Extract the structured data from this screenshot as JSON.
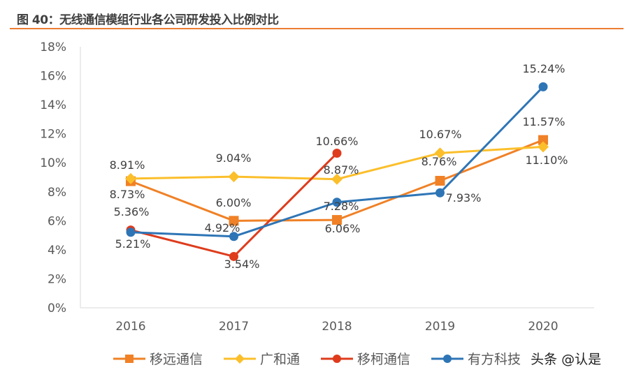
{
  "figure_title": "图 40：无线通信模组行业各公司研发投入比例对比",
  "watermark": "头条 @认是",
  "chart_data": {
    "type": "line",
    "title": "",
    "xlabel": "",
    "ylabel": "",
    "categories": [
      "2016",
      "2017",
      "2018",
      "2019",
      "2020"
    ],
    "ylim": [
      0,
      18
    ],
    "y_ticks": [
      "0%",
      "2%",
      "4%",
      "6%",
      "8%",
      "10%",
      "12%",
      "14%",
      "16%",
      "18%"
    ],
    "grid": false,
    "legend_position": "bottom",
    "series": [
      {
        "name": "移远通信",
        "color": "#f08126",
        "marker": "square",
        "values": [
          8.73,
          6.0,
          6.06,
          8.76,
          11.57
        ],
        "labels": [
          "8.73%",
          "6.00%",
          "6.06%",
          "8.76%",
          "11.57%"
        ]
      },
      {
        "name": "广和通",
        "color": "#fbbf2b",
        "marker": "diamond",
        "values": [
          8.91,
          9.04,
          8.87,
          10.67,
          11.1
        ],
        "labels": [
          "8.91%",
          "9.04%",
          "8.87%",
          "10.67%",
          "11.10%"
        ]
      },
      {
        "name": "移柯通信",
        "color": "#de3c1d",
        "marker": "circle",
        "values": [
          5.36,
          3.54,
          10.66,
          null,
          null
        ],
        "labels": [
          "5.36%",
          "3.54%",
          "10.66%",
          null,
          null
        ]
      },
      {
        "name": "有方科技",
        "color": "#2e75b6",
        "marker": "circle",
        "values": [
          5.21,
          4.92,
          7.28,
          7.93,
          15.24
        ],
        "labels": [
          "5.21%",
          "4.92%",
          "7.28%",
          "7.93%",
          "15.24%"
        ]
      }
    ]
  }
}
